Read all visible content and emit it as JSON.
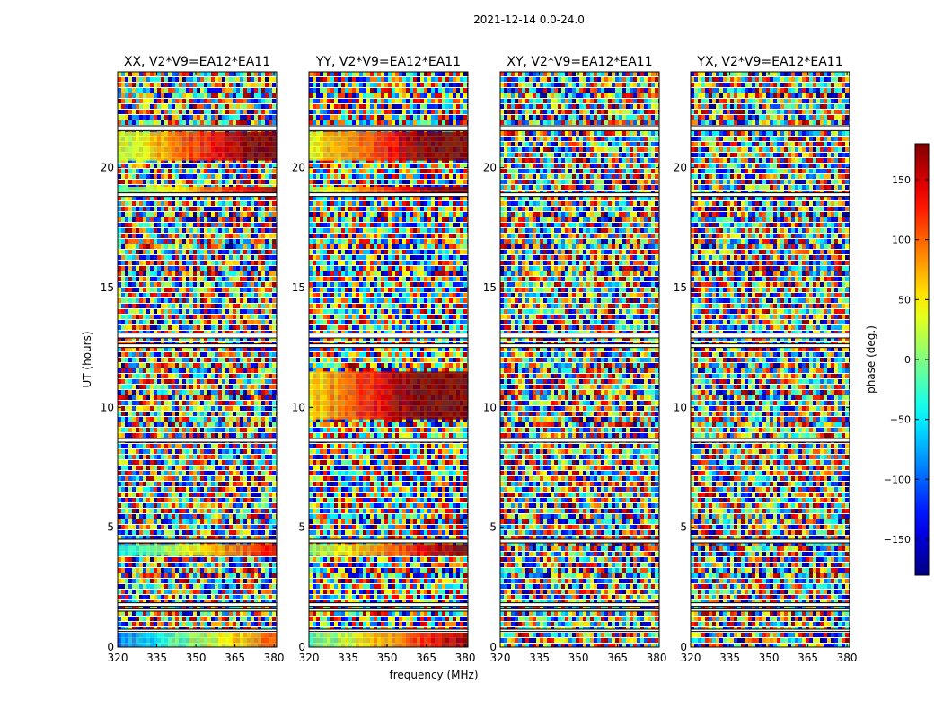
{
  "figure_title": "2021-12-14 0.0-24.0",
  "chart_data": {
    "type": "heatmap",
    "title": "2021-12-14 0.0-24.0",
    "xlabel": "frequency (MHz)",
    "ylabel": "UT (hours)",
    "xlim": [
      320,
      381
    ],
    "ylim": [
      0,
      24
    ],
    "x_ticks": [
      320,
      335,
      350,
      365,
      380
    ],
    "y_ticks": [
      0,
      5,
      10,
      15,
      20
    ],
    "panels": [
      {
        "title": "XX, V2*V9=EA12*EA11",
        "polarization": "XX",
        "coherent_bands": [
          [
            0.0,
            0.6
          ],
          [
            3.8,
            4.3
          ],
          [
            18.9,
            19.2
          ],
          [
            20.3,
            21.5
          ]
        ]
      },
      {
        "title": "YY, V2*V9=EA12*EA11",
        "polarization": "YY",
        "coherent_bands": [
          [
            0.0,
            0.6
          ],
          [
            3.8,
            4.3
          ],
          [
            18.9,
            19.2
          ],
          [
            20.3,
            21.5
          ],
          [
            9.5,
            11.5
          ]
        ]
      },
      {
        "title": "XY, V2*V9=EA12*EA11",
        "polarization": "XY",
        "coherent_bands": []
      },
      {
        "title": "YX, V2*V9=EA12*EA11",
        "polarization": "YX",
        "coherent_bands": []
      }
    ],
    "data_gaps_hours": [
      [
        0.65,
        0.75
      ],
      [
        1.5,
        1.6
      ],
      [
        1.7,
        1.85
      ],
      [
        4.35,
        4.5
      ],
      [
        8.55,
        8.7
      ],
      [
        12.5,
        12.65
      ],
      [
        12.9,
        13.1
      ],
      [
        18.8,
        18.95
      ],
      [
        21.55,
        21.75
      ]
    ],
    "colorbar": {
      "label": "phase (deg.)",
      "range": [
        -180,
        180
      ],
      "ticks": [
        150,
        100,
        50,
        0,
        -50,
        -100,
        -150
      ],
      "tick_labels": [
        "150",
        "100",
        "50",
        "0",
        "−50",
        "−100",
        "−150"
      ],
      "colormap": "jet"
    }
  }
}
